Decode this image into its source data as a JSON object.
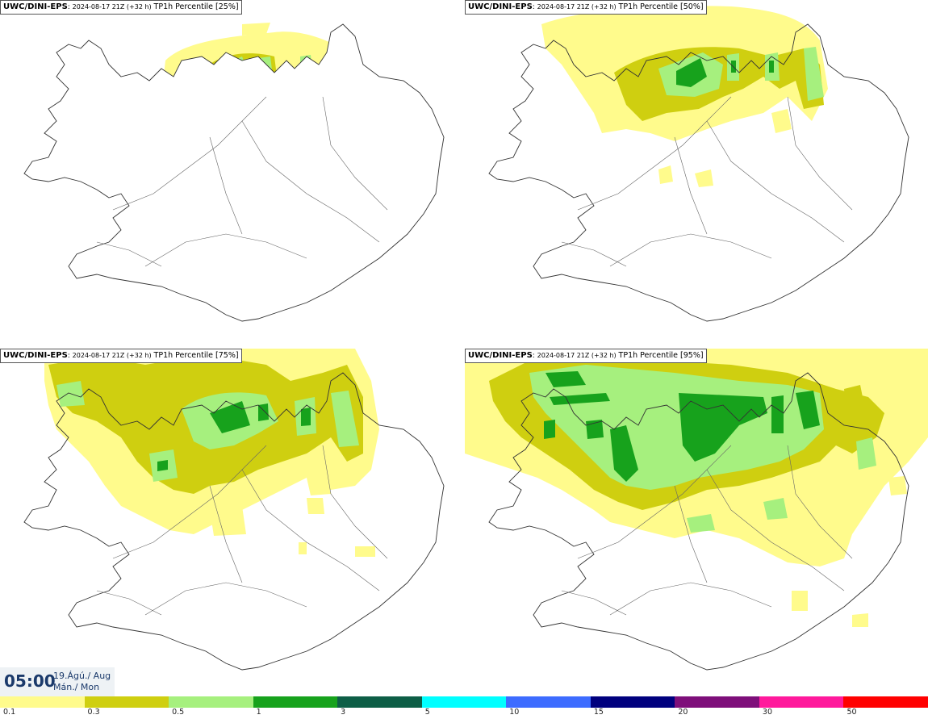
{
  "panels": [
    {
      "model": "UWC/DINI-EPS",
      "run": "2024-08-17 21Z (+32 h)",
      "product": "TP1h Percentile [25%]"
    },
    {
      "model": "UWC/DINI-EPS",
      "run": "2024-08-17 21Z (+32 h)",
      "product": "TP1h Percentile [50%]"
    },
    {
      "model": "UWC/DINI-EPS",
      "run": "2024-08-17 21Z (+32 h)",
      "product": "TP1h Percentile [75%]"
    },
    {
      "model": "UWC/DINI-EPS",
      "run": "2024-08-17 21Z (+32 h)",
      "product": "TP1h Percentile [95%]"
    }
  ],
  "valid_time": {
    "time": "05:00",
    "date_line": "19.Ágú./ Aug",
    "day_line": "Mán./ Mon"
  },
  "legend": {
    "labels": [
      "0.1",
      "0.3",
      "0.5",
      "1",
      "3",
      "5",
      "10",
      "15",
      "20",
      "30",
      "50"
    ],
    "colors": [
      "#fffb8c",
      "#cfcf10",
      "#a6f07e",
      "#17a21c",
      "#0d5e46",
      "#00ffff",
      "#3d6cff",
      "#00007e",
      "#7e0f7a",
      "#ff1a9c",
      "#ff0000"
    ]
  },
  "palette": {
    "light_yellow": "#fffb8c",
    "olive": "#cfcf10",
    "light_green": "#a6f07e",
    "green": "#17a21c",
    "coast": "#333333",
    "title_color": "#1b3a6b"
  }
}
